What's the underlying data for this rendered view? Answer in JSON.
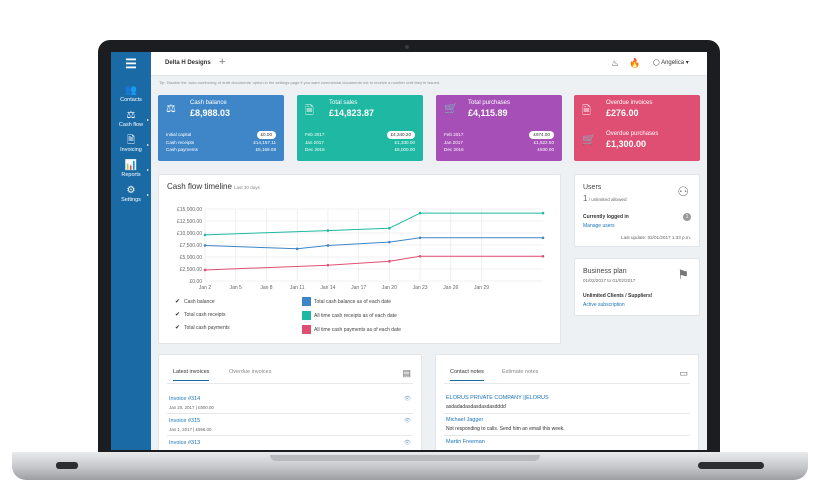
{
  "sidebar": {
    "items": [
      {
        "label": "Contacts",
        "icon": "contacts-icon",
        "glyph": "👥"
      },
      {
        "label": "Cash flow",
        "icon": "cashflow-icon",
        "glyph": "⚖"
      },
      {
        "label": "Invoicing",
        "icon": "invoicing-icon",
        "glyph": "🗎"
      },
      {
        "label": "Reports",
        "icon": "reports-icon",
        "glyph": "📊"
      },
      {
        "label": "Settings",
        "icon": "settings-icon",
        "glyph": "⚙"
      }
    ]
  },
  "topbar": {
    "company": "Delta H Designs",
    "add_glyph": "+",
    "user": "Angelica ▾",
    "fire_glyph": "🔥"
  },
  "tip": "Tip: Disable the 'auto-numbering of draft documents' option in the settings page if you want commercial documents not to receive a number until they're issued.",
  "cards": {
    "cash_balance": {
      "title": "Cash balance",
      "value": "£8,988.03",
      "color": "#3e86c8",
      "glyph": "⚖",
      "rows": [
        {
          "label": "Initial capital",
          "value": "£0.00",
          "pill": true
        },
        {
          "label": "Cash receipts",
          "value": "£14,157.11",
          "pill": false
        },
        {
          "label": "Cash payments",
          "value": "£5,169.08",
          "pill": false
        }
      ]
    },
    "total_sales": {
      "title": "Total sales",
      "value": "£14,823.87",
      "color": "#1fb8a3",
      "glyph": "🗎",
      "rows": [
        {
          "label": "Feb 2017",
          "value": "£4,340.20",
          "pill": true
        },
        {
          "label": "Jan 2017",
          "value": "£1,330.00",
          "pill": false
        },
        {
          "label": "Dec 2016",
          "value": "£5,000.00",
          "pill": false
        }
      ]
    },
    "total_purchases": {
      "title": "Total purchases",
      "value": "£4,115.89",
      "color": "#a64fb6",
      "glyph": "🛒",
      "rows": [
        {
          "label": "Feb 2017",
          "value": "£974.00",
          "pill": true
        },
        {
          "label": "Jan 2017",
          "value": "£1,522.50",
          "pill": false
        },
        {
          "label": "Dec 2016",
          "value": "£930.00",
          "pill": false
        }
      ]
    },
    "overdue": {
      "color": "#df4f73",
      "invoices_title": "Overdue invoices",
      "invoices_value": "£276.00",
      "invoices_glyph": "🗎",
      "purchases_title": "Overdue purchases",
      "purchases_value": "£1,300.00",
      "purchases_glyph": "🛒"
    }
  },
  "timeline": {
    "title": "Cash flow timeline",
    "subtitle": "Last 30 days",
    "legend_checks": [
      "Cash balance",
      "Total cash receipts",
      "Total cash payments"
    ],
    "legend_series": [
      {
        "label": "Total cash balance as of each date",
        "color": "#3e86c8"
      },
      {
        "label": "All time cash receipts as of each date",
        "color": "#1fb8a3"
      },
      {
        "label": "All time cash payments as of each date",
        "color": "#df4f73"
      }
    ]
  },
  "chart_data": {
    "type": "line",
    "x": [
      "Jan 2",
      "Jan 5",
      "Jan 8",
      "Jan 11",
      "Jan 14",
      "Jan 17",
      "Jan 20",
      "Jan 23",
      "Jan 26",
      "Jan 29"
    ],
    "x_index": [
      0,
      3,
      6,
      9,
      12,
      15,
      18,
      21,
      24,
      27
    ],
    "yticks": [
      "£0.00",
      "£2,500.00",
      "£5,000.00",
      "£7,500.00",
      "£10,000.00",
      "£12,500.00",
      "£15,000.00"
    ],
    "ylim": [
      0,
      15000
    ],
    "series": [
      {
        "name": "Total cash balance as of each date",
        "color": "#3e86c8",
        "points": [
          [
            0,
            7400
          ],
          [
            9,
            6700
          ],
          [
            12,
            7400
          ],
          [
            18,
            8100
          ],
          [
            21,
            9000
          ],
          [
            33,
            9000
          ]
        ]
      },
      {
        "name": "All time cash receipts as of each date",
        "color": "#1fb8a3",
        "points": [
          [
            0,
            9600
          ],
          [
            12,
            10500
          ],
          [
            18,
            11000
          ],
          [
            21,
            14150
          ],
          [
            33,
            14150
          ]
        ]
      },
      {
        "name": "All time cash payments as of each date",
        "color": "#df4f73",
        "points": [
          [
            0,
            2300
          ],
          [
            12,
            3300
          ],
          [
            18,
            4100
          ],
          [
            21,
            5150
          ],
          [
            33,
            5150
          ]
        ]
      }
    ],
    "x_max": 33,
    "grid": true
  },
  "users": {
    "title": "Users",
    "count": "1",
    "count_note": "/ unlimited allowed",
    "logged_label": "Currently logged in",
    "logged_count": "1",
    "manage": "Manage users",
    "last_update": "Last update: 02/01/2017 1:33 p.m."
  },
  "plan": {
    "title": "Business plan",
    "dates": "01/02/2017 to 01/02/2017",
    "name": "Unlimited Clients / Suppliers!",
    "status": "Active subscription"
  },
  "invoices": {
    "tabs": [
      "Latest invoices",
      "Overdue invoices"
    ],
    "items": [
      {
        "number": "Invoice #314",
        "meta": "Jan 20, 2017 | £900.00"
      },
      {
        "number": "Invoice #315",
        "meta": "Jan 1, 2017 | £696.00"
      },
      {
        "number": "Invoice #313",
        "meta": ""
      }
    ]
  },
  "notes": {
    "tabs": [
      "Contact notes",
      "Estimate notes"
    ],
    "items": [
      {
        "contact": "ELORUS PRIVATE COMPANY ||ELORUS",
        "text": "asdadadasdasdasdasdddd"
      },
      {
        "contact": "Michael Jagger",
        "text": "Not responding to calls. Send him an email this week."
      },
      {
        "contact": "Martin Freeman",
        "text": ""
      }
    ]
  }
}
